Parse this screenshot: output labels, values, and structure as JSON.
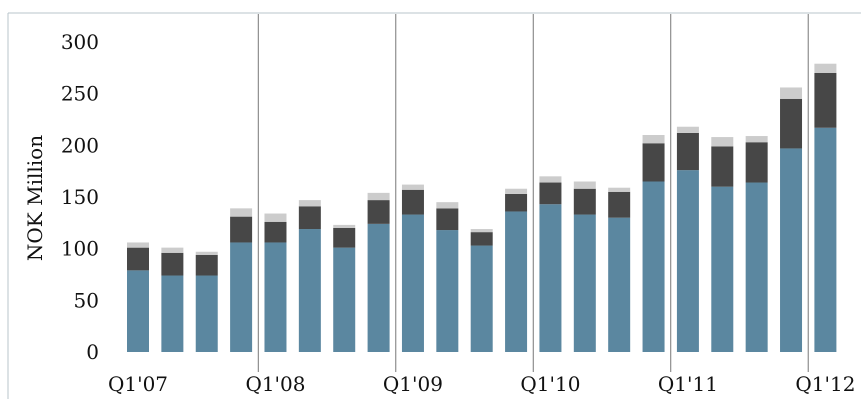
{
  "chart_data": {
    "type": "bar",
    "stacked": true,
    "ylabel": "NOK Million",
    "ylim": [
      0,
      300
    ],
    "yticks": [
      "0",
      "50",
      "100",
      "150",
      "200",
      "250",
      "300"
    ],
    "categories": [
      "Q1'07",
      "Q2'07",
      "Q3'07",
      "Q4'07",
      "Q1'08",
      "Q2'08",
      "Q3'08",
      "Q4'08",
      "Q1'09",
      "Q2'09",
      "Q3'09",
      "Q4'09",
      "Q1'10",
      "Q2'10",
      "Q3'10",
      "Q4'10",
      "Q1'11",
      "Q2'11",
      "Q3'11",
      "Q4'11",
      "Q1'12"
    ],
    "xtick_labels": [
      "Q1'07",
      "Q1'08",
      "Q1'09",
      "Q1'10",
      "Q1'11",
      "Q1'12"
    ],
    "year_separators_after": [
      3,
      7,
      11,
      15,
      19
    ],
    "grid": false,
    "series": [
      {
        "color": "#5b87a0",
        "values": [
          79,
          74,
          74,
          106,
          106,
          119,
          101,
          124,
          133,
          118,
          103,
          136,
          143,
          133,
          130,
          165,
          176,
          160,
          164,
          197,
          217
        ]
      },
      {
        "color": "#474747",
        "values": [
          22,
          22,
          20,
          25,
          20,
          22,
          19,
          23,
          24,
          21,
          13,
          17,
          21,
          25,
          25,
          37,
          36,
          39,
          39,
          48,
          53
        ]
      },
      {
        "color": "#cccccc",
        "values": [
          5,
          5,
          3,
          8,
          8,
          6,
          3,
          7,
          5,
          6,
          3,
          5,
          6,
          7,
          4,
          8,
          6,
          9,
          6,
          11,
          9
        ]
      }
    ]
  }
}
